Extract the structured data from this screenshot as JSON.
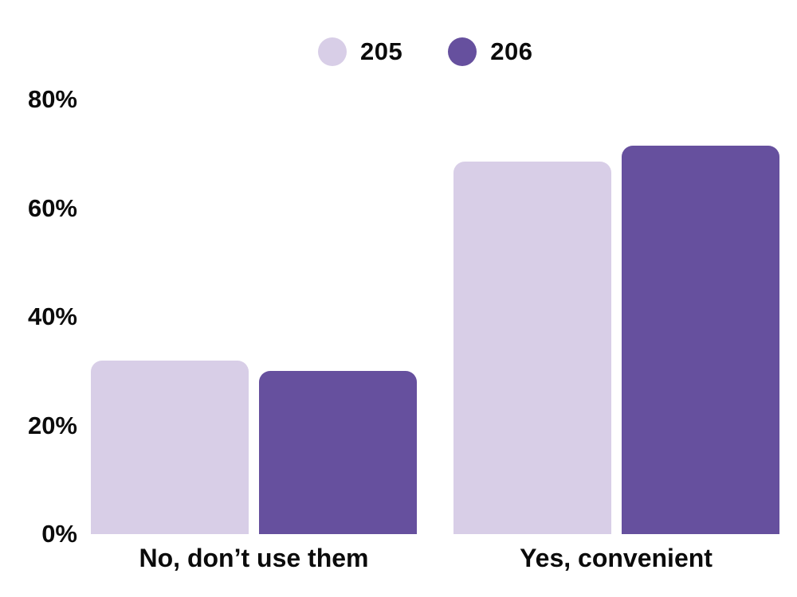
{
  "chart_data": {
    "type": "bar",
    "title": "",
    "xlabel": "",
    "ylabel": "",
    "categories": [
      "No, don’t use them",
      "Yes, convenient"
    ],
    "series": [
      {
        "name": "205",
        "color": "#D8CEE7",
        "values": [
          32,
          68.5
        ]
      },
      {
        "name": "206",
        "color": "#66509E",
        "values": [
          30,
          71.5
        ]
      }
    ],
    "ylim": [
      0,
      80
    ],
    "yticks": [
      {
        "label": "0%",
        "value": 0
      },
      {
        "label": "20%",
        "value": 20
      },
      {
        "label": "40%",
        "value": 40
      },
      {
        "label": "60%",
        "value": 60
      },
      {
        "label": "80%",
        "value": 80
      }
    ],
    "grid": false,
    "legend_position": "top",
    "background_color": "#FFFFFF",
    "text_color": "#0B0B0B"
  }
}
